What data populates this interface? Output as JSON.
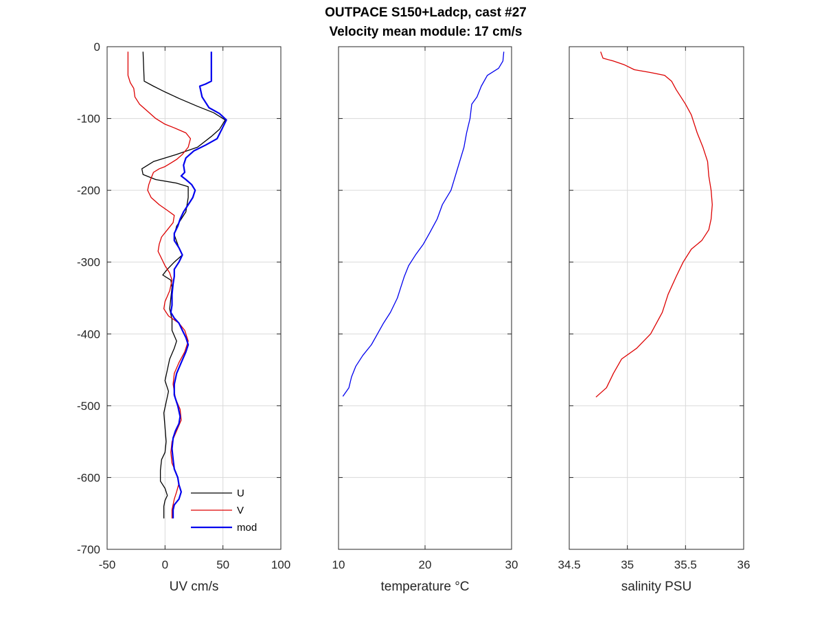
{
  "figure": {
    "title_line1": "OUTPACE S150+Ladcp, cast #27",
    "title_line2": "Velocity mean module:  17 cm/s"
  },
  "colors": {
    "U": "#000000",
    "V": "#dd0000",
    "mod": "#0000ee",
    "temperature": "#0000ee",
    "salinity": "#dd0000",
    "grid": "#d9d9d9",
    "axes": "#262626"
  },
  "chart_data": [
    {
      "type": "line",
      "xlabel": "UV cm/s",
      "ylabel": "",
      "xlim": [
        -50,
        100
      ],
      "ylim": [
        -700,
        0
      ],
      "xticks": [
        "-50",
        "0",
        "50",
        "100"
      ],
      "yticks": [
        "0",
        "-100",
        "-200",
        "-300",
        "-400",
        "-500",
        "-600",
        "-700"
      ],
      "grid": true,
      "legend": {
        "position": "bottom-right",
        "entries": [
          "U",
          "V",
          "mod"
        ]
      },
      "series": [
        {
          "name": "U",
          "color": "#000000",
          "points": [
            [
              -19,
              -7
            ],
            [
              -18,
              -48
            ],
            [
              -10,
              -55
            ],
            [
              0,
              -63
            ],
            [
              12,
              -72
            ],
            [
              28,
              -83
            ],
            [
              42,
              -92
            ],
            [
              52,
              -102
            ],
            [
              47,
              -115
            ],
            [
              40,
              -125
            ],
            [
              28,
              -140
            ],
            [
              10,
              -150
            ],
            [
              -10,
              -160
            ],
            [
              -20,
              -170
            ],
            [
              -19,
              -178
            ],
            [
              -8,
              -185
            ],
            [
              10,
              -190
            ],
            [
              20,
              -195
            ],
            [
              20,
              -210
            ],
            [
              18,
              -230
            ],
            [
              10,
              -250
            ],
            [
              8,
              -262
            ],
            [
              12,
              -280
            ],
            [
              15,
              -290
            ],
            [
              8,
              -300
            ],
            [
              2,
              -310
            ],
            [
              -2,
              -318
            ],
            [
              5,
              -325
            ],
            [
              6,
              -335
            ],
            [
              5,
              -350
            ],
            [
              4,
              -365
            ],
            [
              6,
              -380
            ],
            [
              6,
              -395
            ],
            [
              10,
              -410
            ],
            [
              8,
              -420
            ],
            [
              4,
              -435
            ],
            [
              2,
              -450
            ],
            [
              0,
              -465
            ],
            [
              3,
              -480
            ],
            [
              1,
              -495
            ],
            [
              -1,
              -510
            ],
            [
              0,
              -530
            ],
            [
              1,
              -550
            ],
            [
              0,
              -565
            ],
            [
              -3,
              -575
            ],
            [
              -4,
              -590
            ],
            [
              -4,
              -605
            ],
            [
              0,
              -615
            ],
            [
              2,
              -625
            ],
            [
              0,
              -632
            ],
            [
              -1,
              -640
            ],
            [
              -1,
              -657
            ]
          ]
        },
        {
          "name": "V",
          "color": "#dd0000",
          "points": [
            [
              -32,
              -7
            ],
            [
              -32,
              -40
            ],
            [
              -30,
              -50
            ],
            [
              -27,
              -58
            ],
            [
              -26,
              -70
            ],
            [
              -22,
              -80
            ],
            [
              -15,
              -90
            ],
            [
              -8,
              -100
            ],
            [
              0,
              -108
            ],
            [
              8,
              -113
            ],
            [
              18,
              -120
            ],
            [
              22,
              -128
            ],
            [
              20,
              -140
            ],
            [
              15,
              -150
            ],
            [
              10,
              -157
            ],
            [
              5,
              -162
            ],
            [
              0,
              -167
            ],
            [
              -5,
              -170
            ],
            [
              -10,
              -175
            ],
            [
              -12,
              -183
            ],
            [
              -14,
              -192
            ],
            [
              -15,
              -200
            ],
            [
              -12,
              -210
            ],
            [
              -5,
              -220
            ],
            [
              2,
              -228
            ],
            [
              8,
              -235
            ],
            [
              7,
              -245
            ],
            [
              2,
              -255
            ],
            [
              -3,
              -265
            ],
            [
              -5,
              -275
            ],
            [
              -6,
              -285
            ],
            [
              -3,
              -295
            ],
            [
              0,
              -305
            ],
            [
              4,
              -315
            ],
            [
              6,
              -325
            ],
            [
              4,
              -340
            ],
            [
              0,
              -355
            ],
            [
              -1,
              -365
            ],
            [
              3,
              -375
            ],
            [
              12,
              -385
            ],
            [
              17,
              -395
            ],
            [
              20,
              -410
            ],
            [
              17,
              -425
            ],
            [
              12,
              -440
            ],
            [
              8,
              -455
            ],
            [
              7,
              -470
            ],
            [
              9,
              -490
            ],
            [
              13,
              -505
            ],
            [
              14,
              -520
            ],
            [
              10,
              -535
            ],
            [
              6,
              -550
            ],
            [
              5,
              -565
            ],
            [
              6,
              -580
            ],
            [
              10,
              -595
            ],
            [
              12,
              -608
            ],
            [
              10,
              -620
            ],
            [
              8,
              -630
            ],
            [
              6,
              -645
            ],
            [
              6,
              -657
            ]
          ]
        },
        {
          "name": "mod",
          "color": "#0000ee",
          "points": [
            [
              40,
              -7
            ],
            [
              40,
              -48
            ],
            [
              35,
              -52
            ],
            [
              30,
              -55
            ],
            [
              32,
              -70
            ],
            [
              38,
              -85
            ],
            [
              47,
              -93
            ],
            [
              53,
              -102
            ],
            [
              49,
              -115
            ],
            [
              45,
              -128
            ],
            [
              35,
              -137
            ],
            [
              25,
              -145
            ],
            [
              18,
              -155
            ],
            [
              16,
              -165
            ],
            [
              17,
              -175
            ],
            [
              14,
              -180
            ],
            [
              18,
              -185
            ],
            [
              23,
              -192
            ],
            [
              26,
              -200
            ],
            [
              24,
              -210
            ],
            [
              20,
              -220
            ],
            [
              16,
              -230
            ],
            [
              13,
              -240
            ],
            [
              11,
              -250
            ],
            [
              8,
              -260
            ],
            [
              8,
              -270
            ],
            [
              12,
              -280
            ],
            [
              15,
              -290
            ],
            [
              12,
              -300
            ],
            [
              8,
              -310
            ],
            [
              8,
              -320
            ],
            [
              7,
              -330
            ],
            [
              6,
              -345
            ],
            [
              6,
              -360
            ],
            [
              5,
              -370
            ],
            [
              8,
              -378
            ],
            [
              12,
              -385
            ],
            [
              15,
              -395
            ],
            [
              18,
              -405
            ],
            [
              20,
              -415
            ],
            [
              18,
              -425
            ],
            [
              14,
              -440
            ],
            [
              10,
              -455
            ],
            [
              8,
              -470
            ],
            [
              8,
              -485
            ],
            [
              11,
              -500
            ],
            [
              13,
              -515
            ],
            [
              12,
              -525
            ],
            [
              9,
              -535
            ],
            [
              7,
              -545
            ],
            [
              6,
              -560
            ],
            [
              7,
              -575
            ],
            [
              8,
              -588
            ],
            [
              11,
              -600
            ],
            [
              12,
              -610
            ],
            [
              14,
              -620
            ],
            [
              12,
              -630
            ],
            [
              8,
              -638
            ],
            [
              7,
              -645
            ],
            [
              7,
              -657
            ]
          ]
        }
      ]
    },
    {
      "type": "line",
      "xlabel": "temperature °C",
      "ylabel": "",
      "xlim": [
        10,
        30
      ],
      "ylim": [
        -700,
        0
      ],
      "xticks": [
        "10",
        "20",
        "30"
      ],
      "yticks": [],
      "grid": true,
      "series": [
        {
          "name": "",
          "color": "#0000ee",
          "points": [
            [
              29.1,
              -7
            ],
            [
              29.0,
              -20
            ],
            [
              28.5,
              -30
            ],
            [
              27.2,
              -40
            ],
            [
              26.5,
              -55
            ],
            [
              26.0,
              -70
            ],
            [
              25.4,
              -80
            ],
            [
              25.2,
              -100
            ],
            [
              24.8,
              -120
            ],
            [
              24.5,
              -140
            ],
            [
              24.0,
              -160
            ],
            [
              23.5,
              -180
            ],
            [
              23.0,
              -200
            ],
            [
              22.0,
              -220
            ],
            [
              21.4,
              -240
            ],
            [
              20.5,
              -260
            ],
            [
              19.8,
              -275
            ],
            [
              18.9,
              -290
            ],
            [
              18.1,
              -305
            ],
            [
              17.6,
              -320
            ],
            [
              17.2,
              -335
            ],
            [
              16.8,
              -350
            ],
            [
              16.0,
              -370
            ],
            [
              15.2,
              -385
            ],
            [
              14.5,
              -400
            ],
            [
              13.8,
              -415
            ],
            [
              12.8,
              -430
            ],
            [
              12.0,
              -445
            ],
            [
              11.5,
              -460
            ],
            [
              11.2,
              -475
            ],
            [
              10.5,
              -487
            ]
          ]
        }
      ]
    },
    {
      "type": "line",
      "xlabel": "salinity PSU",
      "ylabel": "",
      "xlim": [
        34.5,
        36
      ],
      "ylim": [
        -700,
        0
      ],
      "xticks": [
        "34.5",
        "35",
        "35.5",
        "36"
      ],
      "yticks": [],
      "grid": true,
      "series": [
        {
          "name": "",
          "color": "#dd0000",
          "points": [
            [
              34.77,
              -7
            ],
            [
              34.79,
              -16
            ],
            [
              34.88,
              -20
            ],
            [
              34.97,
              -25
            ],
            [
              35.06,
              -32
            ],
            [
              35.2,
              -36
            ],
            [
              35.32,
              -40
            ],
            [
              35.38,
              -48
            ],
            [
              35.42,
              -60
            ],
            [
              35.46,
              -70
            ],
            [
              35.5,
              -80
            ],
            [
              35.55,
              -95
            ],
            [
              35.6,
              -120
            ],
            [
              35.65,
              -140
            ],
            [
              35.69,
              -160
            ],
            [
              35.7,
              -180
            ],
            [
              35.72,
              -200
            ],
            [
              35.73,
              -220
            ],
            [
              35.72,
              -240
            ],
            [
              35.7,
              -255
            ],
            [
              35.64,
              -270
            ],
            [
              35.55,
              -282
            ],
            [
              35.48,
              -300
            ],
            [
              35.42,
              -320
            ],
            [
              35.35,
              -345
            ],
            [
              35.3,
              -370
            ],
            [
              35.2,
              -400
            ],
            [
              35.08,
              -420
            ],
            [
              34.95,
              -435
            ],
            [
              34.88,
              -455
            ],
            [
              34.82,
              -475
            ],
            [
              34.73,
              -488
            ]
          ]
        }
      ]
    }
  ]
}
